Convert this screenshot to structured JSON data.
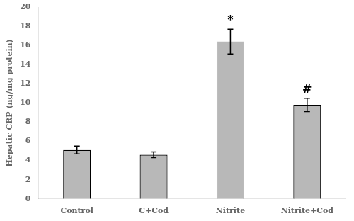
{
  "chart_data": {
    "type": "bar",
    "categories": [
      "Control",
      "C+Cod",
      "Nitrite",
      "Nitrite+Cod"
    ],
    "values": [
      5.1,
      4.6,
      16.4,
      9.8
    ],
    "errors": [
      0.4,
      0.3,
      1.3,
      0.7
    ],
    "color": "#b8b8b8",
    "ylabel": "Hepatic CRP (ng/mg protein)",
    "ylim": [
      0,
      20
    ],
    "yticks": [
      0,
      2,
      4,
      6,
      8,
      10,
      12,
      14,
      16,
      18,
      20
    ],
    "annotations": [
      {
        "text": "*",
        "category": "Nitrite"
      },
      {
        "text": "#",
        "category": "Nitrite+Cod"
      }
    ],
    "grid": false
  }
}
